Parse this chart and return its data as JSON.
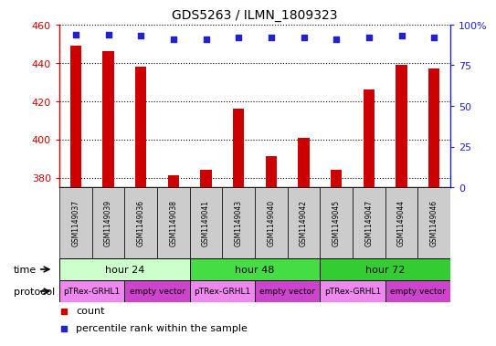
{
  "title": "GDS5263 / ILMN_1809323",
  "samples": [
    "GSM1149037",
    "GSM1149039",
    "GSM1149036",
    "GSM1149038",
    "GSM1149041",
    "GSM1149043",
    "GSM1149040",
    "GSM1149042",
    "GSM1149045",
    "GSM1149047",
    "GSM1149044",
    "GSM1149046"
  ],
  "counts": [
    449,
    446,
    438,
    381,
    384,
    416,
    391,
    401,
    384,
    426,
    439,
    437
  ],
  "percentiles": [
    94,
    94,
    93,
    91,
    91,
    92,
    92,
    92,
    91,
    92,
    93,
    92
  ],
  "ylim_left": [
    375,
    460
  ],
  "ylim_right": [
    0,
    100
  ],
  "yticks_left": [
    380,
    400,
    420,
    440,
    460
  ],
  "yticks_right": [
    0,
    25,
    50,
    75,
    100
  ],
  "bar_color": "#CC0000",
  "dot_color": "#2222CC",
  "time_groups": [
    {
      "label": "hour 24",
      "start": 0,
      "end": 4,
      "color": "#CCFFCC"
    },
    {
      "label": "hour 48",
      "start": 4,
      "end": 8,
      "color": "#44DD44"
    },
    {
      "label": "hour 72",
      "start": 8,
      "end": 12,
      "color": "#33CC33"
    }
  ],
  "protocol_groups": [
    {
      "label": "pTRex-GRHL1",
      "start": 0,
      "end": 2,
      "color": "#EE88EE"
    },
    {
      "label": "empty vector",
      "start": 2,
      "end": 4,
      "color": "#CC44CC"
    },
    {
      "label": "pTRex-GRHL1",
      "start": 4,
      "end": 6,
      "color": "#EE88EE"
    },
    {
      "label": "empty vector",
      "start": 6,
      "end": 8,
      "color": "#CC44CC"
    },
    {
      "label": "pTRex-GRHL1",
      "start": 8,
      "end": 10,
      "color": "#EE88EE"
    },
    {
      "label": "empty vector",
      "start": 10,
      "end": 12,
      "color": "#CC44CC"
    }
  ],
  "time_label": "time",
  "protocol_label": "protocol",
  "legend_count_label": "count",
  "legend_percentile_label": "percentile rank within the sample",
  "background_color": "#FFFFFF",
  "sample_box_color": "#CCCCCC",
  "bar_width": 0.35
}
